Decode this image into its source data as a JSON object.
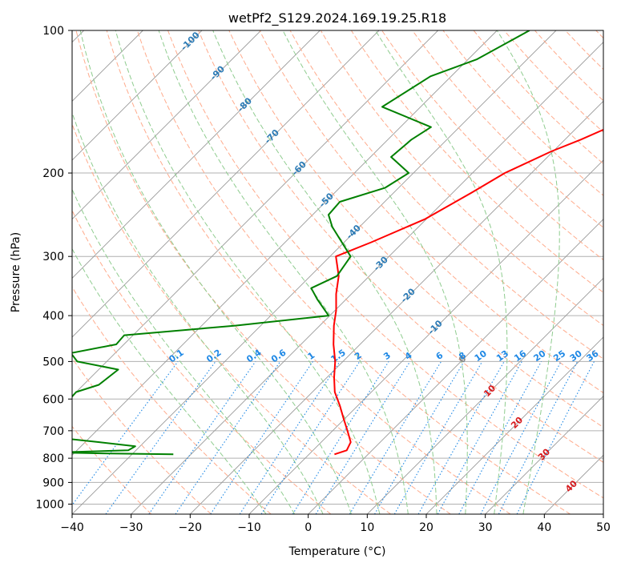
{
  "chart_data": {
    "type": "line",
    "title": "wetPf2_S129.2024.169.19.25.R18",
    "xlabel": "Temperature (°C)",
    "ylabel": "Pressure (hPa)",
    "xlim": [
      -40,
      50
    ],
    "ylim": [
      1050,
      100
    ],
    "y_scale": "log",
    "x_ticks": [
      "−40",
      "−30",
      "−20",
      "−10",
      "0",
      "10",
      "20",
      "30",
      "40",
      "50"
    ],
    "x_tick_values": [
      -40,
      -30,
      -20,
      -10,
      0,
      10,
      20,
      30,
      40,
      50
    ],
    "y_ticks": [
      "100",
      "200",
      "300",
      "400",
      "500",
      "600",
      "700",
      "800",
      "900",
      "1000"
    ],
    "y_tick_values": [
      100,
      200,
      300,
      400,
      500,
      600,
      700,
      800,
      900,
      1000
    ],
    "grid": true,
    "skew_degrees": 45,
    "series": [
      {
        "color": "#ff0000",
        "points": [
          [
            100,
            0.4
          ],
          [
            110,
            -0.3
          ],
          [
            120,
            -0.9
          ],
          [
            135,
            -3.6
          ],
          [
            150,
            -10.2
          ],
          [
            160,
            -14.6
          ],
          [
            170,
            -17.3
          ],
          [
            180,
            -20.3
          ],
          [
            200,
            -24.5
          ],
          [
            220,
            -26.8
          ],
          [
            250,
            -30.2
          ],
          [
            280,
            -35.4
          ],
          [
            300,
            -39.0
          ],
          [
            330,
            -35.2
          ],
          [
            360,
            -32.6
          ],
          [
            390,
            -29.8
          ],
          [
            420,
            -27.6
          ],
          [
            460,
            -24.5
          ],
          [
            500,
            -21.3
          ],
          [
            540,
            -18.8
          ],
          [
            580,
            -16.2
          ],
          [
            620,
            -13.0
          ],
          [
            660,
            -10.2
          ],
          [
            700,
            -7.5
          ],
          [
            740,
            -5.0
          ],
          [
            770,
            -4.3
          ],
          [
            785,
            -5.7
          ]
        ]
      },
      {
        "color": "#008000",
        "points": [
          [
            100,
            -44.5
          ],
          [
            115,
            -48.5
          ],
          [
            125,
            -53.5
          ],
          [
            145,
            -56.5
          ],
          [
            160,
            -44.8
          ],
          [
            170,
            -46.0
          ],
          [
            185,
            -46.5
          ],
          [
            200,
            -40.8
          ],
          [
            215,
            -42.3
          ],
          [
            230,
            -47.6
          ],
          [
            245,
            -47.3
          ],
          [
            260,
            -44.6
          ],
          [
            300,
            -36.5
          ],
          [
            330,
            -35.5
          ],
          [
            350,
            -37.8
          ],
          [
            370,
            -34.8
          ],
          [
            400,
            -30.2
          ],
          [
            420,
            -44.3
          ],
          [
            440,
            -61.5
          ],
          [
            460,
            -61.3
          ],
          [
            480,
            -67.5
          ],
          [
            500,
            -65.0
          ],
          [
            520,
            -56.7
          ],
          [
            560,
            -57.4
          ],
          [
            580,
            -60.0
          ],
          [
            620,
            -59.8
          ],
          [
            660,
            -62.0
          ],
          [
            690,
            -57.0
          ],
          [
            710,
            -62.5
          ],
          [
            740,
            -47.6
          ],
          [
            755,
            -40.8
          ],
          [
            770,
            -41.3
          ],
          [
            778,
            -53.0
          ],
          [
            782,
            -44.0
          ],
          [
            785,
            -33.0
          ]
        ]
      }
    ],
    "dry_adiabats_theta_c": [
      -30,
      -20,
      -10,
      0,
      10,
      20,
      30,
      40,
      50,
      60,
      70,
      80,
      90,
      100,
      110,
      120,
      130,
      140,
      150,
      160,
      170,
      180,
      190,
      200
    ],
    "moist_adiabat_start_c": [
      -10,
      -5,
      0,
      5,
      10,
      15,
      20,
      25,
      30,
      35
    ],
    "isotherm_labels": [
      "-100",
      "-90",
      "-80",
      "-70",
      "-60",
      "-50",
      "-40",
      "-30",
      "-20",
      "-10",
      "0",
      "10",
      "20",
      "30",
      "40"
    ],
    "mixing_ratio_labels": [
      "0.1",
      "0.2",
      "0.4",
      "0.6",
      "1",
      "1.5",
      "2",
      "3",
      "4",
      "6",
      "8",
      "10",
      "13",
      "16",
      "20",
      "25",
      "30",
      "36"
    ],
    "colors": {
      "temperature": "#ff0000",
      "dewpoint": "#008000",
      "dry_adiabat": "#ffab8c",
      "moist_adiabat": "#8fcc8f",
      "mixing_ratio": "#1e88e5",
      "isotherm": "#999999",
      "isotherm_label_cold": "#2c7bb6",
      "isotherm_label_zero": "#888888",
      "isotherm_label_warm": "#d7191c",
      "mixing_label": "#1e88e5"
    }
  }
}
